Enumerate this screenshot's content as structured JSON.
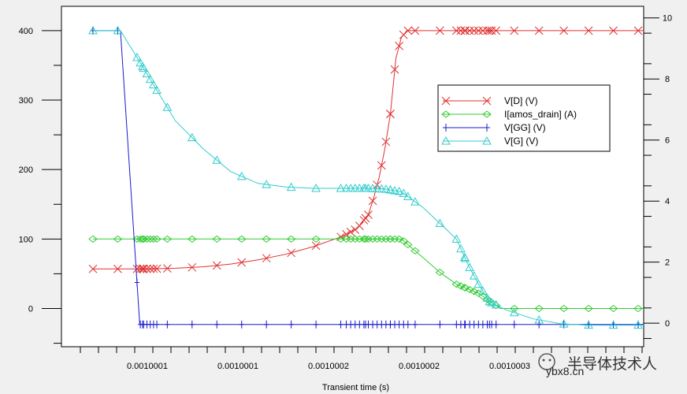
{
  "chart_data": {
    "type": "line",
    "xlabel": "Transient time (s)",
    "x_tick_labels": [
      "0.0010001",
      "0.0010001",
      "0.0010002",
      "0.0010002",
      "0.0010003"
    ],
    "x_range_note": "data x expressed in relative units 0..1 across visible span",
    "y_left_ticks": [
      0,
      100,
      200,
      300,
      400
    ],
    "y_left_range": [
      -55,
      435
    ],
    "y_right_ticks": [
      0,
      2,
      4,
      6,
      8,
      10
    ],
    "y_right_range": [
      -0.77,
      10.38
    ],
    "legend_position": "right",
    "series": [
      {
        "name": "V[D] (V)",
        "axis": "left",
        "color": "#e03030",
        "marker": "x",
        "x": [
          0.0,
          0.05,
          0.1,
          0.15,
          0.2,
          0.25,
          0.3,
          0.35,
          0.4,
          0.45,
          0.48,
          0.5,
          0.51,
          0.52,
          0.53,
          0.54,
          0.545,
          0.55,
          0.56,
          0.57,
          0.6,
          0.7,
          0.8,
          0.9,
          1.0
        ],
        "y": [
          57,
          57,
          57,
          58,
          60,
          64,
          70,
          78,
          89,
          103,
          115,
          135,
          160,
          190,
          230,
          280,
          320,
          360,
          390,
          400,
          400,
          400,
          400,
          400,
          400
        ]
      },
      {
        "name": "I[amos_drain] (A)",
        "axis": "left",
        "color": "#33cc33",
        "marker": "diamond",
        "x": [
          0.0,
          0.05,
          0.1,
          0.2,
          0.3,
          0.4,
          0.5,
          0.53,
          0.56,
          0.6,
          0.63,
          0.66,
          0.7,
          0.74,
          0.8,
          0.9,
          1.0
        ],
        "y": [
          100,
          100,
          100,
          100,
          100,
          100,
          100,
          100,
          100,
          73,
          52,
          35,
          22,
          0,
          0,
          0,
          0
        ]
      },
      {
        "name": "V[GG] (V)",
        "axis": "left",
        "color": "#1a1acc",
        "marker": "plus",
        "x": [
          0.0,
          0.05,
          0.085,
          0.1,
          0.2,
          0.3,
          0.4,
          0.5,
          0.6,
          0.7,
          0.8,
          0.9,
          1.0
        ],
        "y": [
          400,
          400,
          -23,
          -23,
          -23,
          -23,
          -23,
          -23,
          -23,
          -23,
          -23,
          -23,
          -23
        ]
      },
      {
        "name": "V[G] (V)",
        "axis": "left",
        "color": "#33cccc",
        "marker": "triangle",
        "x": [
          0.0,
          0.05,
          0.085,
          0.11,
          0.15,
          0.2,
          0.25,
          0.3,
          0.35,
          0.4,
          0.45,
          0.5,
          0.53,
          0.56,
          0.6,
          0.64,
          0.66,
          0.68,
          0.7,
          0.72,
          0.75,
          0.8,
          0.85,
          0.9,
          0.95,
          1.0
        ],
        "y": [
          400,
          400,
          355,
          322,
          270,
          230,
          197,
          180,
          175,
          173,
          173,
          173,
          172,
          168,
          145,
          115,
          100,
          65,
          35,
          10,
          -2,
          -15,
          -22,
          -24,
          -24,
          -24
        ]
      }
    ]
  },
  "watermark": {
    "domain": "ybx8.cn",
    "text": "半导体技术人"
  }
}
